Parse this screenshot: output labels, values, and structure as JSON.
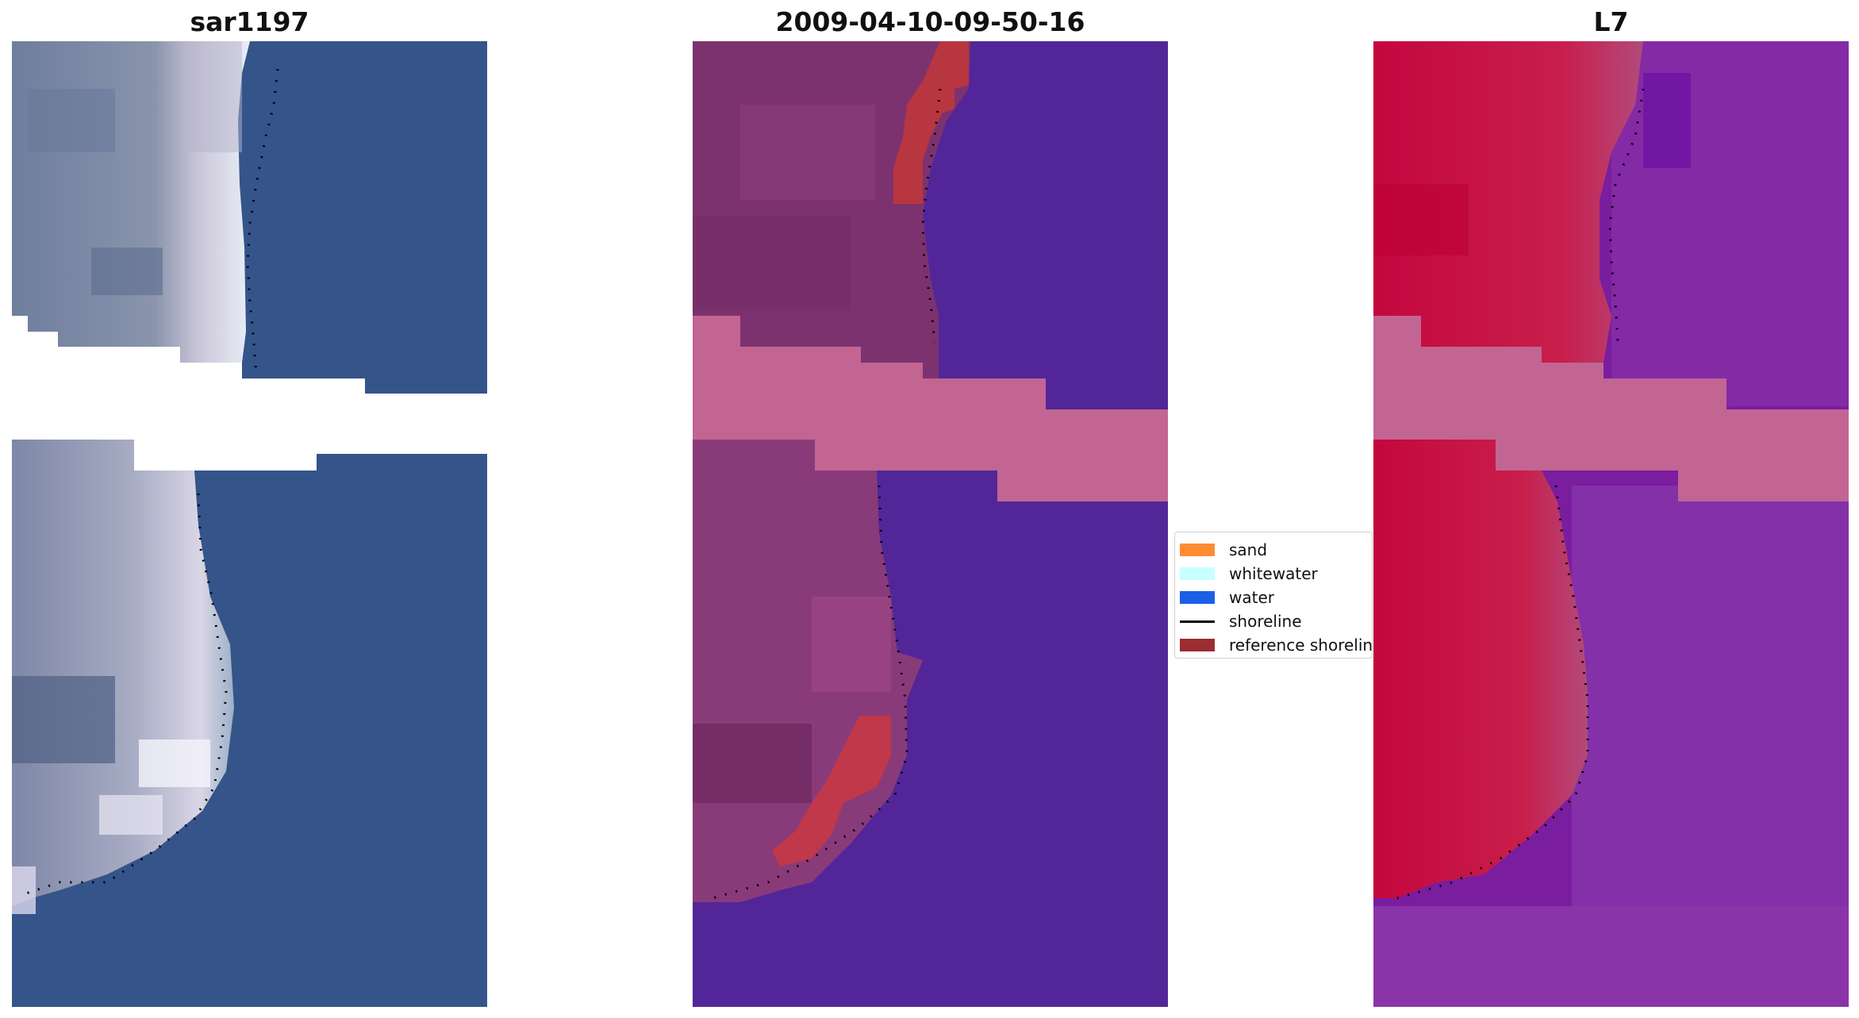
{
  "panels": [
    {
      "title": "sar1197",
      "image": "rgb-satellite-image"
    },
    {
      "title": "2009-04-10-09-50-16",
      "image": "classified-image"
    },
    {
      "title": "L7",
      "image": "false-color-image"
    }
  ],
  "legend": {
    "items": [
      {
        "label": "sand",
        "color": "#ff8c33",
        "kind": "patch"
      },
      {
        "label": "whitewater",
        "color": "#c8ffff",
        "kind": "patch"
      },
      {
        "label": "water",
        "color": "#1a5fe6",
        "kind": "patch"
      },
      {
        "label": "shoreline",
        "color": "#000000",
        "kind": "line"
      },
      {
        "label": "reference shoreline",
        "color": "#9b2d30",
        "kind": "patch"
      }
    ]
  }
}
